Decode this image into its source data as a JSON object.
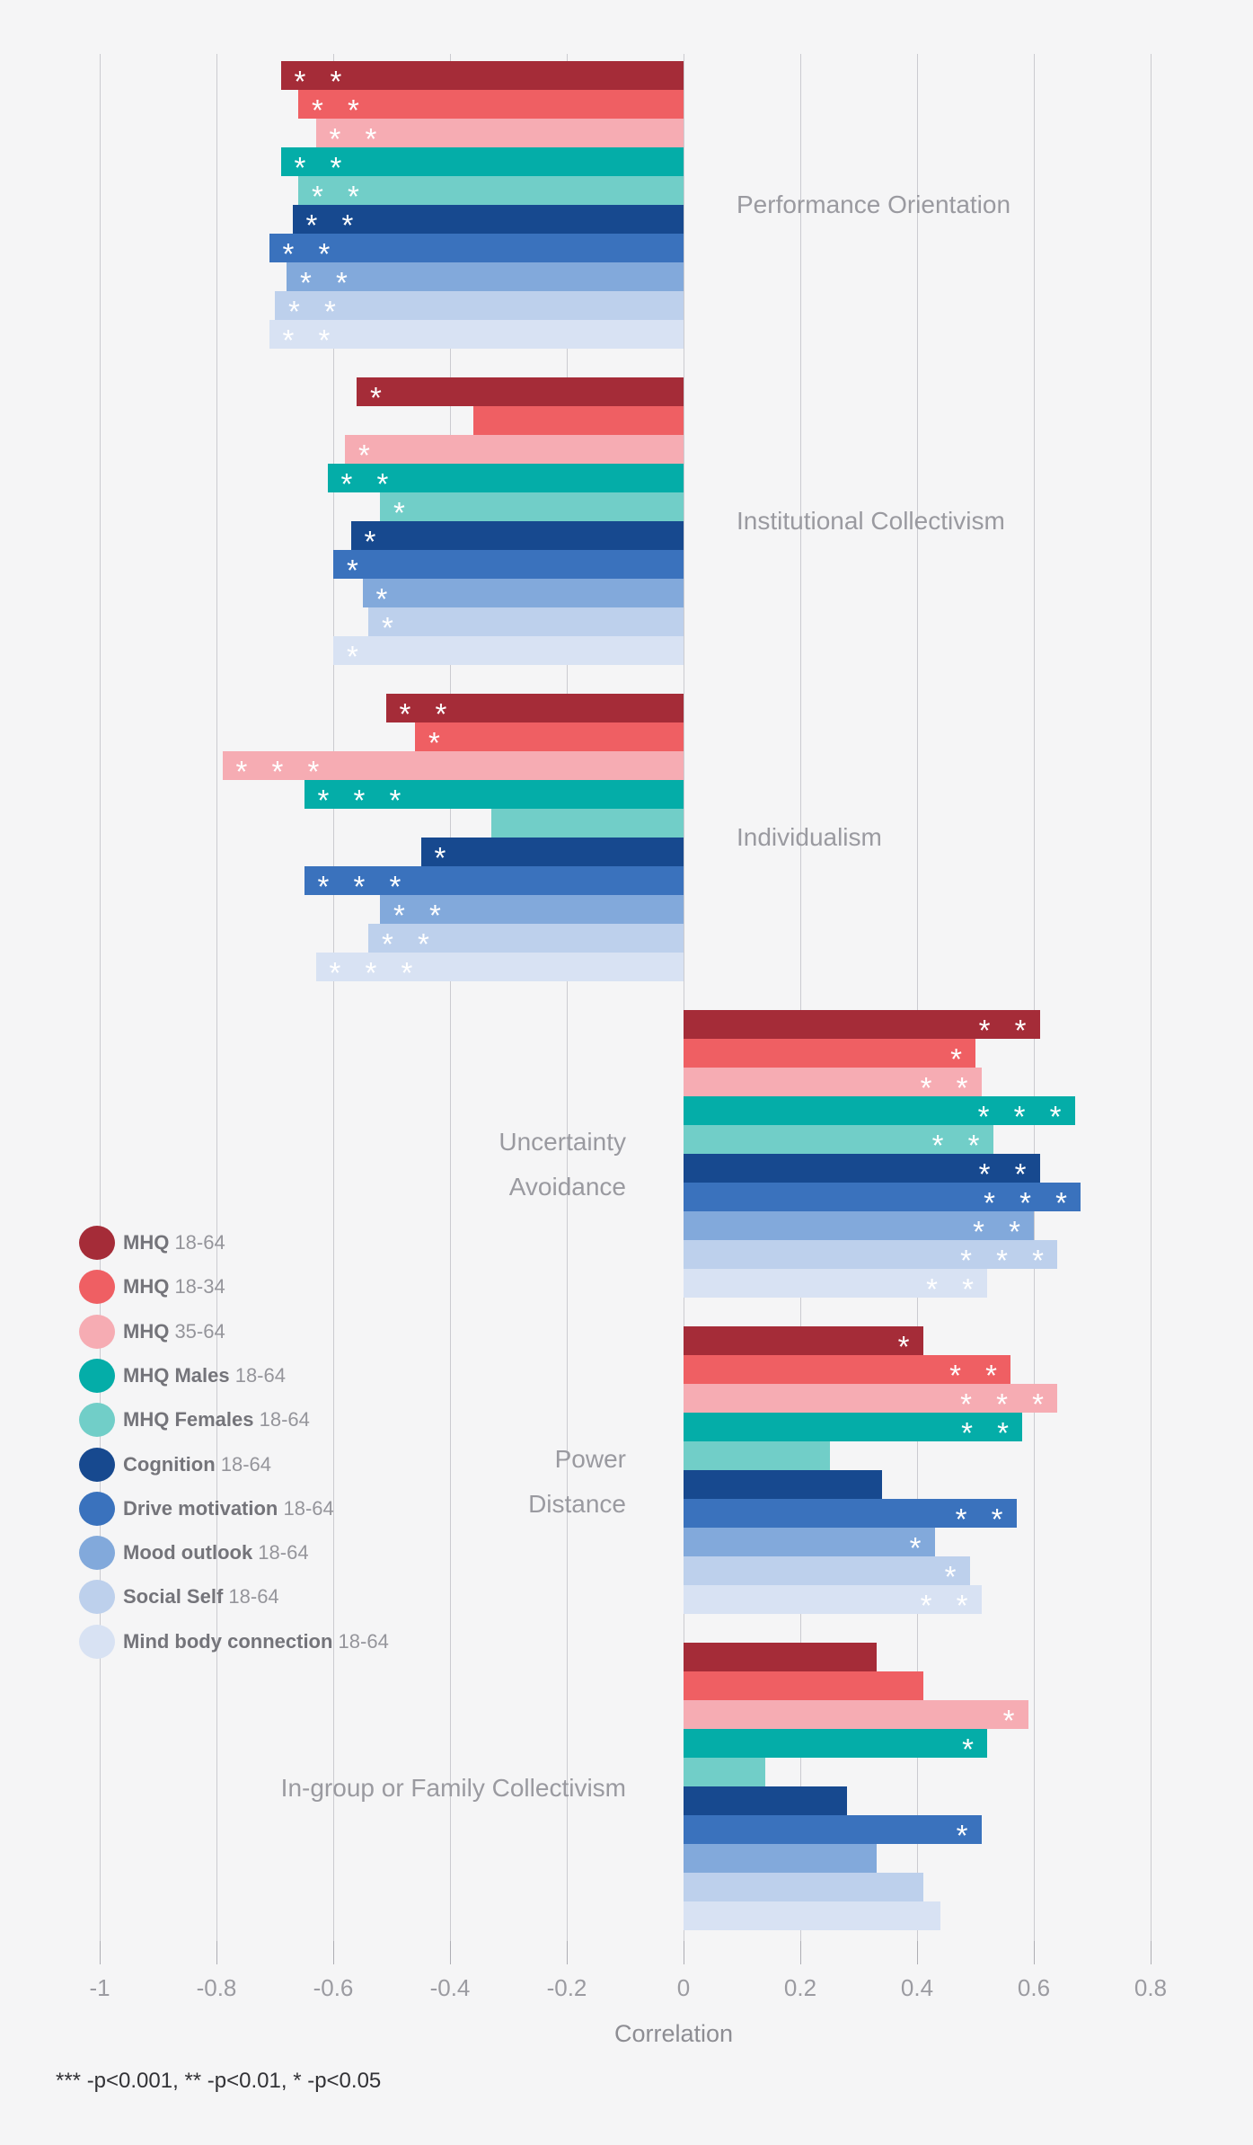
{
  "background_color": "#f5f5f6",
  "chart_data": {
    "type": "bar",
    "orientation": "horizontal",
    "title": "",
    "xlabel": "Correlation",
    "ylabel": "",
    "xlim": [
      -1,
      0.8
    ],
    "grid": true,
    "legend_position": "middle-left",
    "significance_note": "*** -p<0.001,  ** -p<0.01,  * -p<0.05",
    "xticks": [
      {
        "value": -1,
        "label": "-1"
      },
      {
        "value": -0.8,
        "label": "-0.8"
      },
      {
        "value": -0.6,
        "label": "-0.6"
      },
      {
        "value": -0.4,
        "label": "-0.4"
      },
      {
        "value": -0.2,
        "label": "-0.2"
      },
      {
        "value": 0,
        "label": "0"
      },
      {
        "value": 0.2,
        "label": "0.2"
      },
      {
        "value": 0.4,
        "label": "0.4"
      },
      {
        "value": 0.6,
        "label": "0.6"
      },
      {
        "value": 0.8,
        "label": "0.8"
      }
    ],
    "series": [
      {
        "name": "MHQ",
        "age": "18-64",
        "color": "#a52c38"
      },
      {
        "name": "MHQ",
        "age": "18-34",
        "color": "#ef5f63"
      },
      {
        "name": "MHQ",
        "age": "35-64",
        "color": "#f6acb3"
      },
      {
        "name": "MHQ Males",
        "age": "18-64",
        "color": "#04ada8"
      },
      {
        "name": "MHQ Females",
        "age": "18-64",
        "color": "#71cec8"
      },
      {
        "name": "Cognition",
        "age": "18-64",
        "color": "#17498f"
      },
      {
        "name": "Drive motivation",
        "age": "18-64",
        "color": "#3a72bd"
      },
      {
        "name": "Mood outlook",
        "age": "18-64",
        "color": "#82a9db"
      },
      {
        "name": "Social Self",
        "age": "18-64",
        "color": "#bdd0ec"
      },
      {
        "name": "Mind body connection",
        "age": "18-64",
        "color": "#d8e2f3"
      }
    ],
    "groups": [
      {
        "category": "Performance Orientation",
        "label_lines": [
          "Performance Orientation"
        ],
        "label_side": "right",
        "values": [
          -0.69,
          -0.66,
          -0.63,
          -0.69,
          -0.66,
          -0.67,
          -0.71,
          -0.68,
          -0.7,
          -0.71
        ],
        "sig": [
          "**",
          "**",
          "**",
          "**",
          "**",
          "**",
          "**",
          "**",
          "**",
          "**"
        ]
      },
      {
        "category": "Institutional Collectivism",
        "label_lines": [
          "Institutional Collectivism"
        ],
        "label_side": "right",
        "values": [
          -0.56,
          -0.36,
          -0.58,
          -0.61,
          -0.52,
          -0.57,
          -0.6,
          -0.55,
          -0.54,
          -0.6
        ],
        "sig": [
          "*",
          "",
          "*",
          "**",
          "*",
          "*",
          "*",
          "*",
          "*",
          "*"
        ]
      },
      {
        "category": "Individualism",
        "label_lines": [
          "Individualism"
        ],
        "label_side": "right",
        "values": [
          -0.51,
          -0.46,
          -0.79,
          -0.65,
          -0.33,
          -0.45,
          -0.65,
          -0.52,
          -0.54,
          -0.63
        ],
        "sig": [
          "**",
          "*",
          "***",
          "***",
          "",
          "*",
          "***",
          "**",
          "**",
          "***"
        ]
      },
      {
        "category": "Uncertainty Avoidance",
        "label_lines": [
          "Uncertainty",
          "Avoidance"
        ],
        "label_side": "left",
        "values": [
          0.61,
          0.5,
          0.51,
          0.67,
          0.53,
          0.61,
          0.68,
          0.6,
          0.64,
          0.52
        ],
        "sig": [
          "**",
          "*",
          "**",
          "***",
          "**",
          "**",
          "***",
          "**",
          "***",
          "**"
        ]
      },
      {
        "category": "Power Distance",
        "label_lines": [
          "Power",
          "Distance"
        ],
        "label_side": "left",
        "values": [
          0.41,
          0.56,
          0.64,
          0.58,
          0.25,
          0.34,
          0.57,
          0.43,
          0.49,
          0.51
        ],
        "sig": [
          "*",
          "**",
          "***",
          "**",
          "",
          "",
          "**",
          "*",
          "*",
          "**"
        ]
      },
      {
        "category": "In-group or Family Collectivism",
        "label_lines": [
          "In-group or Family Collectivism"
        ],
        "label_side": "left",
        "values": [
          0.33,
          0.41,
          0.59,
          0.52,
          0.14,
          0.28,
          0.51,
          0.33,
          0.41,
          0.44
        ],
        "sig": [
          "",
          "",
          "*",
          "*",
          "",
          "",
          "*",
          "",
          "",
          ""
        ]
      }
    ]
  }
}
